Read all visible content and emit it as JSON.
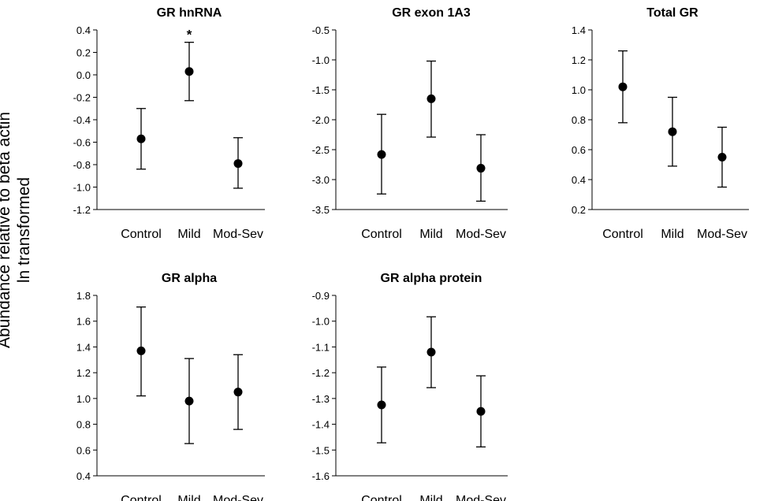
{
  "figure": {
    "ylabel_line1": "Abundance relative to beta actin",
    "ylabel_line2": "ln transformed"
  },
  "chart_data": [
    {
      "type": "scatter",
      "title": "GR hnRNA",
      "categories": [
        "Control",
        "Mild",
        "Mod-Sev"
      ],
      "values": [
        -0.57,
        0.03,
        -0.79
      ],
      "error_low": [
        -0.84,
        -0.23,
        -1.01
      ],
      "error_high": [
        -0.3,
        0.29,
        -0.56
      ],
      "yticks": [
        0.4,
        0.2,
        0.0,
        -0.2,
        -0.4,
        -0.6,
        -0.8,
        -1.0,
        -1.2
      ],
      "ytick_labels": [
        "0.4",
        "0.2",
        "0.0",
        "-0.2",
        "-0.4",
        "-0.6",
        "-0.8",
        "-1.0",
        "-1.2"
      ],
      "ylim": [
        -1.2,
        0.4
      ],
      "annotations": [
        {
          "category": "Mild",
          "text": "*"
        }
      ],
      "grid": false
    },
    {
      "type": "scatter",
      "title": "GR exon 1A3",
      "categories": [
        "Control",
        "Mild",
        "Mod-Sev"
      ],
      "values": [
        -2.58,
        -1.65,
        -2.81
      ],
      "error_low": [
        -3.24,
        -2.29,
        -3.36
      ],
      "error_high": [
        -1.91,
        -1.02,
        -2.25
      ],
      "yticks": [
        -0.5,
        -1.0,
        -1.5,
        -2.0,
        -2.5,
        -3.0,
        -3.5
      ],
      "ytick_labels": [
        "-0.5",
        "-1.0",
        "-1.5",
        "-2.0",
        "-2.5",
        "-3.0",
        "-3.5"
      ],
      "ylim": [
        -3.5,
        -0.5
      ],
      "grid": false
    },
    {
      "type": "scatter",
      "title": "Total GR",
      "categories": [
        "Control",
        "Mild",
        "Mod-Sev"
      ],
      "values": [
        1.02,
        0.72,
        0.55
      ],
      "error_low": [
        0.78,
        0.49,
        0.35
      ],
      "error_high": [
        1.26,
        0.95,
        0.75
      ],
      "yticks": [
        1.4,
        1.2,
        1.0,
        0.8,
        0.6,
        0.4,
        0.2
      ],
      "ytick_labels": [
        "1.4",
        "1.2",
        "1.0",
        "0.8",
        "0.6",
        "0.4",
        "0.2"
      ],
      "ylim": [
        0.2,
        1.4
      ],
      "grid": false
    },
    {
      "type": "scatter",
      "title": "GR alpha",
      "categories": [
        "Control",
        "Mild",
        "Mod-Sev"
      ],
      "values": [
        1.37,
        0.98,
        1.05
      ],
      "error_low": [
        1.02,
        0.65,
        0.76
      ],
      "error_high": [
        1.71,
        1.31,
        1.34
      ],
      "yticks": [
        1.8,
        1.6,
        1.4,
        1.2,
        1.0,
        0.8,
        0.6,
        0.4
      ],
      "ytick_labels": [
        "1.8",
        "1.6",
        "1.4",
        "1.2",
        "1.0",
        "0.8",
        "0.6",
        "0.4"
      ],
      "ylim": [
        0.4,
        1.8
      ],
      "grid": false
    },
    {
      "type": "scatter",
      "title": "GR alpha protein",
      "categories": [
        "Control",
        "Mild",
        "Mod-Sev"
      ],
      "values": [
        -1.325,
        -1.12,
        -1.35
      ],
      "error_low": [
        -1.472,
        -1.258,
        -1.488
      ],
      "error_high": [
        -1.178,
        -0.983,
        -1.212
      ],
      "yticks": [
        -0.9,
        -1.0,
        -1.1,
        -1.2,
        -1.3,
        -1.4,
        -1.5,
        -1.6
      ],
      "ytick_labels": [
        "-0.9",
        "-1.0",
        "-1.1",
        "-1.2",
        "-1.3",
        "-1.4",
        "-1.5",
        "-1.6"
      ],
      "ylim": [
        -1.6,
        -0.9
      ],
      "grid": false
    }
  ]
}
